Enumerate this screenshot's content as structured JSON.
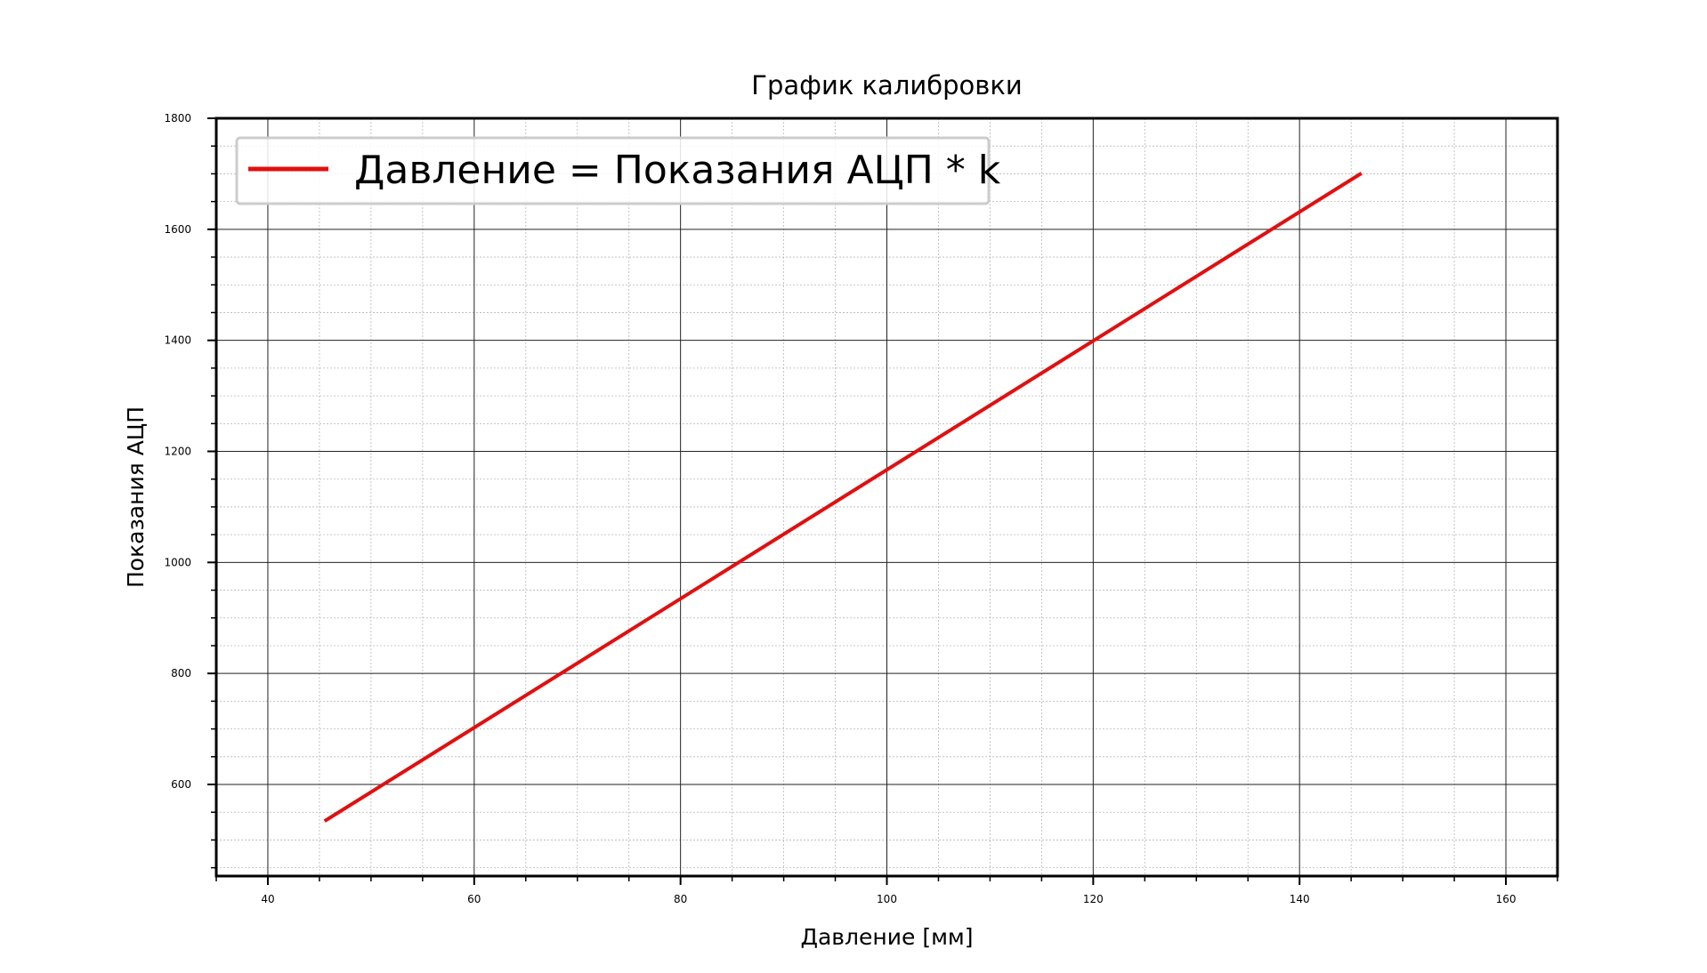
{
  "chart_data": {
    "type": "line",
    "title": "График калибровки",
    "xlabel": "Давление [мм]",
    "ylabel": "Показания АЦП",
    "xlim": [
      35,
      165
    ],
    "ylim": [
      435,
      1800
    ],
    "xticks": [
      40,
      60,
      80,
      100,
      120,
      140,
      160
    ],
    "yticks": [
      600,
      800,
      1000,
      1200,
      1400,
      1600,
      1800
    ],
    "x_minor_step": 5,
    "y_minor_step": 50,
    "grid": true,
    "legend_position": "top-left",
    "series": [
      {
        "name": "Давление = Показания АЦП * k",
        "color": "#e01010",
        "x": [
          45.5,
          146
        ],
        "y": [
          534,
          1701
        ]
      }
    ]
  }
}
